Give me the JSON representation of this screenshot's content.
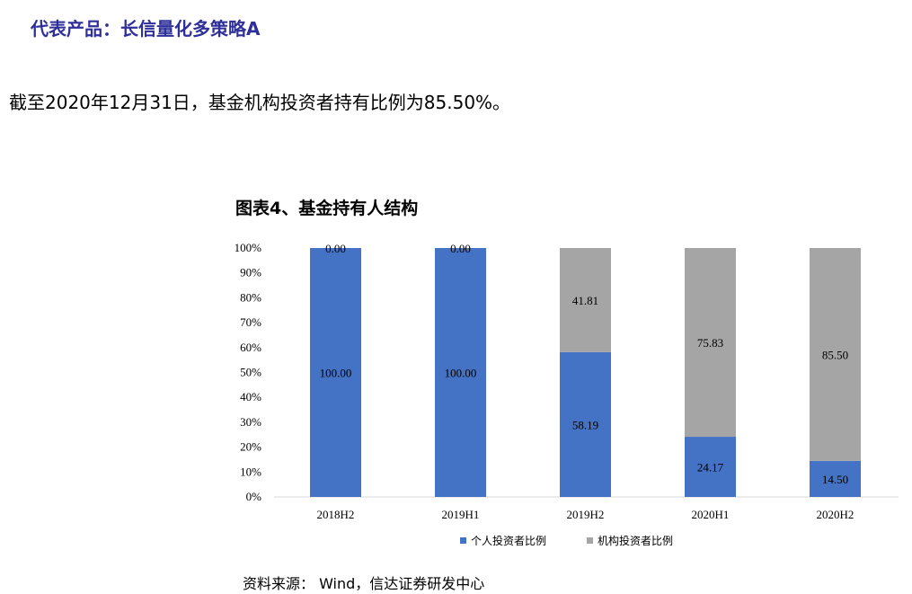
{
  "header": {
    "title": "代表产品：长信量化多策略A"
  },
  "summary": {
    "text": "截至2020年12月31日，基金机构投资者持有比例为85.50%。"
  },
  "source": {
    "text": "资料来源： Wind，信达证券研发中心"
  },
  "colors": {
    "individual": "#4472c4",
    "institution": "#a5a5a5",
    "heading": "#2f2f9a"
  },
  "chart_data": {
    "type": "bar",
    "stacked": true,
    "title": "图表4、基金持有人结构",
    "categories": [
      "2018H2",
      "2019H1",
      "2019H2",
      "2020H1",
      "2020H2"
    ],
    "series": [
      {
        "name": "个人投资者比例",
        "values": [
          100.0,
          100.0,
          58.19,
          24.17,
          14.5
        ],
        "labels": [
          "100.00",
          "100.00",
          "58.19",
          "24.17",
          "14.50"
        ]
      },
      {
        "name": "机构投资者比例",
        "values": [
          0.0,
          0.0,
          41.81,
          75.83,
          85.5
        ],
        "labels": [
          "0.00",
          "0.00",
          "41.81",
          "75.83",
          "85.50"
        ]
      }
    ],
    "ylim": [
      0,
      100
    ],
    "yticks": [
      "0%",
      "10%",
      "20%",
      "30%",
      "40%",
      "50%",
      "60%",
      "70%",
      "80%",
      "90%",
      "100%"
    ],
    "legend_position": "bottom",
    "grid": false
  }
}
